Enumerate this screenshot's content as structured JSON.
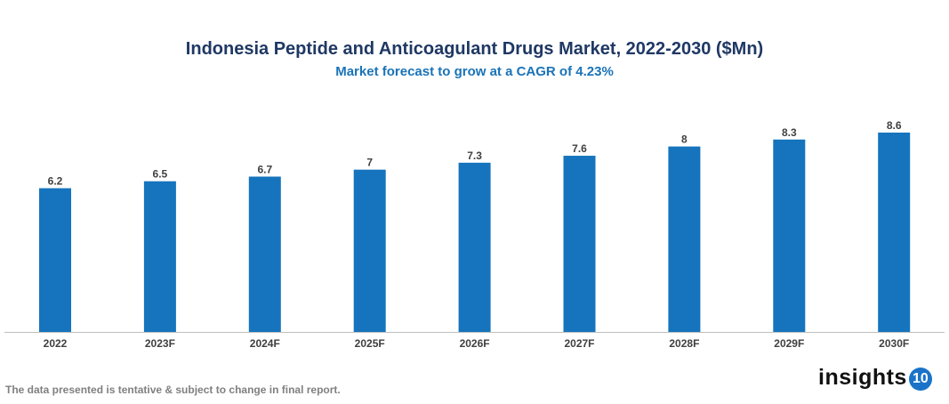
{
  "chart_data": {
    "type": "bar",
    "title": "Indonesia Peptide and Anticoagulant Drugs Market, 2022-2030 ($Mn)",
    "subtitle": "Market forecast to grow at a CAGR of 4.23%",
    "categories": [
      "2022",
      "2023F",
      "2024F",
      "2025F",
      "2026F",
      "2027F",
      "2028F",
      "2029F",
      "2030F"
    ],
    "values": [
      6.2,
      6.5,
      6.7,
      7,
      7.3,
      7.6,
      8,
      8.3,
      8.6
    ],
    "data_labels": [
      "6.2",
      "6.5",
      "6.7",
      "7",
      "7.3",
      "7.6",
      "8",
      "8.3",
      "8.6"
    ],
    "xlabel": "",
    "ylabel": "",
    "ylim": [
      0,
      12.4
    ],
    "grid": false,
    "legend": "none",
    "colors": {
      "bar": "#1574bd",
      "title": "#1f3864",
      "subtitle": "#1a73b8",
      "axis": "#bfbfbf"
    }
  },
  "footnote": "The data presented is tentative & subject to change in final report.",
  "logo": {
    "text": "insights",
    "badge": "10"
  }
}
